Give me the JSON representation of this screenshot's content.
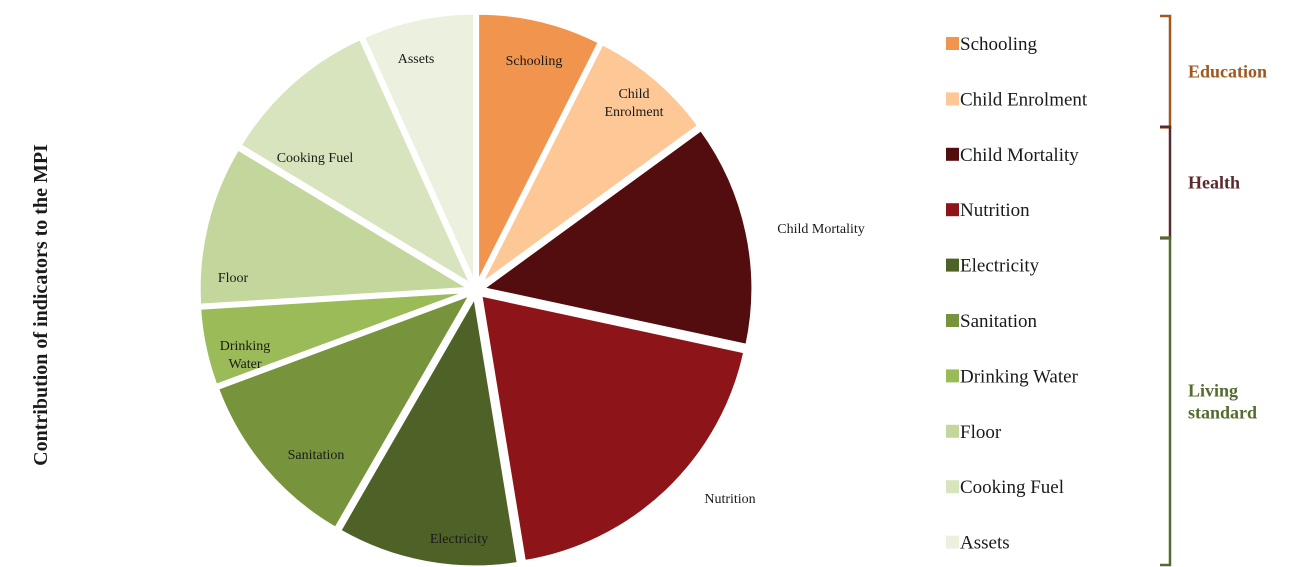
{
  "chart_data": {
    "type": "pie",
    "ylabel": "Contribution of indicators to the MPI",
    "legend_position": "right",
    "slices": [
      {
        "label": "Schooling",
        "value": 7.5,
        "color": "#F0944E",
        "group": "Education"
      },
      {
        "label": "Child Enrolment",
        "value": 7.6,
        "color": "#FDC896",
        "group": "Education"
      },
      {
        "label": "Child Mortality",
        "value": 13.5,
        "color": "#540D0F",
        "group": "Health"
      },
      {
        "label": "Nutrition",
        "value": 19.2,
        "color": "#8D1519",
        "group": "Health"
      },
      {
        "label": "Electricity",
        "value": 11.0,
        "color": "#4E6127",
        "group": "Living standard"
      },
      {
        "label": "Sanitation",
        "value": 11.1,
        "color": "#77943C",
        "group": "Living standard"
      },
      {
        "label": "Drinking Water",
        "value": 4.7,
        "color": "#9BBB59",
        "group": "Living standard"
      },
      {
        "label": "Floor",
        "value": 9.7,
        "color": "#C3D69B",
        "group": "Living standard"
      },
      {
        "label": "Cooking Fuel",
        "value": 9.7,
        "color": "#D7E4BD",
        "group": "Living standard"
      },
      {
        "label": "Assets",
        "value": 6.8,
        "color": "#EBF1DE",
        "group": "Living standard"
      }
    ],
    "slice_text": [
      "Schooling",
      "Child\nEnrolment",
      "Child Mortality",
      "Nutrition",
      "Electricity",
      "Sanitation",
      "Drinking\nWater",
      "Floor",
      "Cooking Fuel",
      "Assets"
    ],
    "groups": [
      {
        "name": "Education",
        "lines": [
          "Education"
        ],
        "color": "#A0581E"
      },
      {
        "name": "Health",
        "lines": [
          "Health"
        ],
        "color": "#5A2A2C"
      },
      {
        "name": "Living standard",
        "lines": [
          "Living",
          "standard"
        ],
        "color": "#556B2F"
      }
    ]
  }
}
